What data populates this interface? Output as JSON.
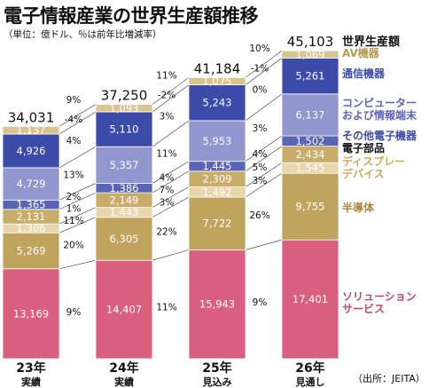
{
  "header": {
    "title": "電子情報産業の世界生産額推移",
    "subtitle": "（単位：億ドル、％は前年比増減率）"
  },
  "source": "（出所：JEITA）",
  "legend_title": "世界生産額",
  "chart_data": {
    "type": "bar",
    "stacked": true,
    "categories": [
      "23年実績",
      "24年実績",
      "25年見込み",
      "26年見通し"
    ],
    "category_lines": [
      [
        "23年",
        "実績"
      ],
      [
        "24年",
        "実績"
      ],
      [
        "25年",
        "見込み"
      ],
      [
        "26年",
        "見通し"
      ]
    ],
    "totals": [
      "34,031",
      "37,250",
      "41,184",
      "45,103"
    ],
    "series": [
      {
        "name": "ソリューションサービス",
        "label_lines": [
          "ソリューション",
          "サービス"
        ],
        "color": "#d95f7f",
        "label_color": "#c2456a",
        "values": [
          13169,
          14407,
          15943,
          17401
        ],
        "labels": [
          "13,169",
          "14,407",
          "15,943",
          "17,401"
        ],
        "growth": [
          "9%",
          "11%",
          "9%"
        ]
      },
      {
        "name": "半導体",
        "label_lines": [
          "半導体"
        ],
        "color": "#bfa45e",
        "label_color": "#a8894a",
        "values": [
          5269,
          6305,
          7722,
          9755
        ],
        "labels": [
          "5,269",
          "6,305",
          "7,722",
          "9,755"
        ],
        "growth": [
          "20%",
          "22%",
          "26%"
        ]
      },
      {
        "name": "ディスプレーデバイス",
        "label_lines": [
          "ディスプレー",
          "デバイス"
        ],
        "color": "#e8d7ad",
        "label_color": "#c9a860",
        "values": [
          1306,
          1443,
          1492,
          1545
        ],
        "labels": [
          "1,306",
          "1,443",
          "1,492",
          "1,545"
        ],
        "growth": [
          "11%",
          "3%",
          "3%"
        ]
      },
      {
        "name": "電子部品",
        "label_lines": [
          "電子部品"
        ],
        "color": "#c8ad6a",
        "label_color": "#111111",
        "values": [
          2131,
          2149,
          2309,
          2434
        ],
        "labels": [
          "2,131",
          "2,149",
          "2,309",
          "2,434"
        ],
        "growth": [
          "1%",
          "7%",
          "5%"
        ]
      },
      {
        "name": "その他電子機器",
        "label_lines": [
          "その他電子機器"
        ],
        "color": "#5a63b5",
        "label_color": "#3d4aa6",
        "values": [
          1365,
          1386,
          1445,
          1502
        ],
        "labels": [
          "1,365",
          "1,386",
          "1,445",
          "1,502"
        ],
        "growth": [
          "2%",
          "4%",
          "4%"
        ]
      },
      {
        "name": "コンピューターおよび情報端末",
        "label_lines": [
          "コンピューター",
          "および情報端末"
        ],
        "color": "#9196cf",
        "label_color": "#5d66b8",
        "values": [
          4729,
          5357,
          5953,
          6137
        ],
        "labels": [
          "4,729",
          "5,357",
          "5,953",
          "6,137"
        ],
        "growth": [
          "13%",
          "11%",
          "3%"
        ]
      },
      {
        "name": "通信機器",
        "label_lines": [
          "通信機器"
        ],
        "color": "#3c4ba8",
        "label_color": "#3c4ba8",
        "values": [
          4926,
          5110,
          5243,
          5261
        ],
        "labels": [
          "4,926",
          "5,110",
          "5,243",
          "5,261"
        ],
        "growth": [
          "4%",
          "3%",
          "0%"
        ]
      },
      {
        "name": "AV機器",
        "label_lines": [
          "AV機器"
        ],
        "color": "#d9c48e",
        "label_color": "#b39a52",
        "values": [
          1137,
          1093,
          1075,
          1069
        ],
        "labels": [
          "1,137",
          "1,093",
          "1,075",
          "1,069"
        ],
        "growth": [
          "-4%",
          "-2%",
          "-1%"
        ]
      }
    ],
    "total_growth": [
      "9%",
      "11%",
      "10%"
    ],
    "xlabel": "",
    "ylabel": "",
    "grid": false,
    "legend": "right"
  }
}
